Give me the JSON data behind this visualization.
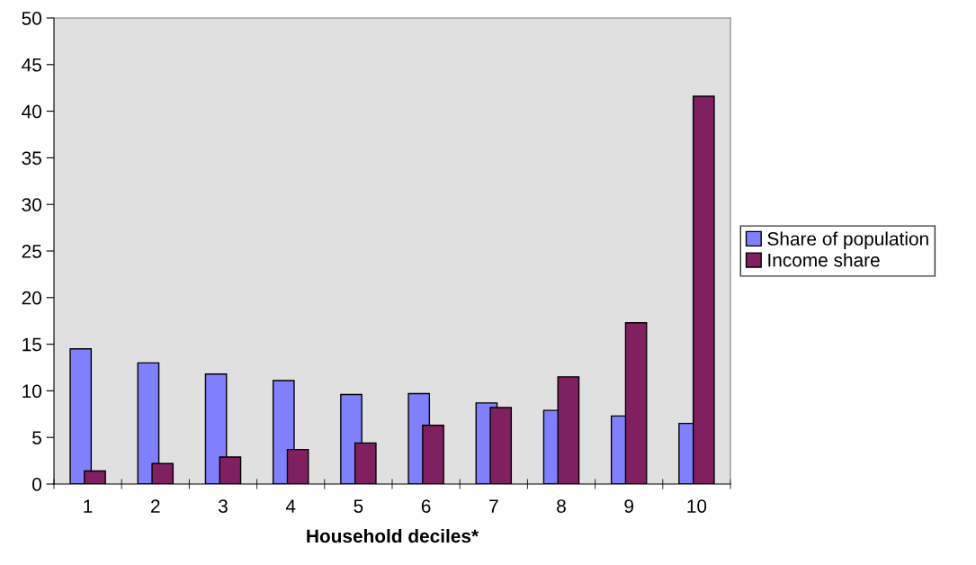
{
  "chart_data": {
    "type": "bar",
    "xlabel": "Household deciles*",
    "categories": [
      "1",
      "2",
      "3",
      "4",
      "5",
      "6",
      "7",
      "8",
      "9",
      "10"
    ],
    "series": [
      {
        "name": "Share of population",
        "color": "#8080ff",
        "values": [
          14.5,
          13.0,
          11.8,
          11.1,
          9.6,
          9.7,
          8.7,
          7.9,
          7.3,
          6.5
        ]
      },
      {
        "name": "Income share",
        "color": "#802060",
        "values": [
          1.4,
          2.2,
          2.9,
          3.7,
          4.4,
          6.3,
          8.2,
          11.5,
          17.3,
          41.6
        ]
      }
    ],
    "ylim": [
      0,
      50
    ],
    "yticks": [
      0,
      5,
      10,
      15,
      20,
      25,
      30,
      35,
      40,
      45,
      50
    ],
    "grid": false,
    "legend": "right"
  }
}
